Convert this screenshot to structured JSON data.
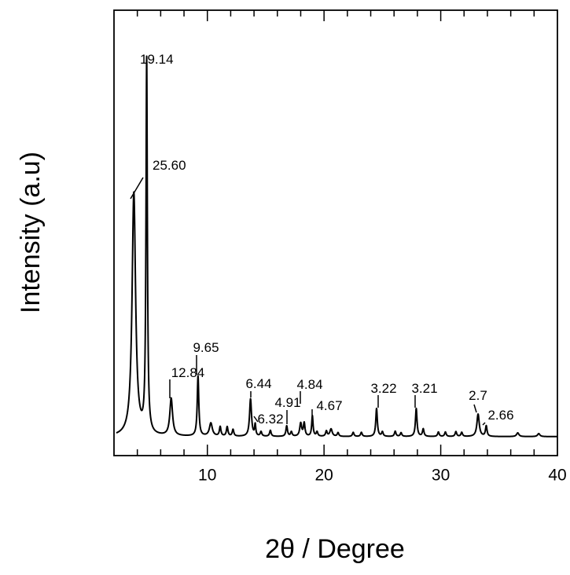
{
  "chart_data": {
    "type": "line",
    "title": "",
    "xlabel": "2θ / Degree",
    "ylabel": "Intensity (a.u)",
    "xlim": [
      2,
      40
    ],
    "ylim": [
      0,
      100
    ],
    "x_ticks": [
      10,
      20,
      30,
      40
    ],
    "x_tick_labels": [
      "10",
      "20",
      "30",
      "40"
    ],
    "y_tick_labels": [],
    "grid": false,
    "legend": "none",
    "line_color": "#000000",
    "series": [
      {
        "values": {
          "baseline": 1.5,
          "peaks": [
            {
              "x": 3.7,
              "height": 65,
              "width": 0.18
            },
            {
              "x": 4.8,
              "height": 100,
              "width": 0.07
            },
            {
              "x": 6.9,
              "height": 10,
              "width": 0.14
            },
            {
              "x": 9.2,
              "height": 16,
              "width": 0.08
            },
            {
              "x": 10.3,
              "height": 3.5,
              "width": 0.15
            },
            {
              "x": 11.1,
              "height": 2.5,
              "width": 0.08
            },
            {
              "x": 11.7,
              "height": 2.5,
              "width": 0.08
            },
            {
              "x": 12.2,
              "height": 1.8,
              "width": 0.08
            },
            {
              "x": 13.7,
              "height": 10,
              "width": 0.1
            },
            {
              "x": 14.1,
              "height": 3,
              "width": 0.06
            },
            {
              "x": 14.6,
              "height": 1.2,
              "width": 0.08
            },
            {
              "x": 15.4,
              "height": 1.6,
              "width": 0.08
            },
            {
              "x": 16.8,
              "height": 2.8,
              "width": 0.08
            },
            {
              "x": 17.2,
              "height": 1.2,
              "width": 0.08
            },
            {
              "x": 18.0,
              "height": 3.5,
              "width": 0.1
            },
            {
              "x": 18.3,
              "height": 3.5,
              "width": 0.08
            },
            {
              "x": 19.0,
              "height": 5.5,
              "width": 0.07
            },
            {
              "x": 19.4,
              "height": 1.2,
              "width": 0.08
            },
            {
              "x": 20.2,
              "height": 1.4,
              "width": 0.08
            },
            {
              "x": 20.6,
              "height": 2,
              "width": 0.12
            },
            {
              "x": 21.2,
              "height": 1,
              "width": 0.08
            },
            {
              "x": 22.5,
              "height": 1.1,
              "width": 0.08
            },
            {
              "x": 23.2,
              "height": 1.1,
              "width": 0.08
            },
            {
              "x": 24.5,
              "height": 7.5,
              "width": 0.08
            },
            {
              "x": 25.0,
              "height": 1.2,
              "width": 0.08
            },
            {
              "x": 26.1,
              "height": 1.4,
              "width": 0.08
            },
            {
              "x": 26.6,
              "height": 1,
              "width": 0.08
            },
            {
              "x": 27.9,
              "height": 7.5,
              "width": 0.08
            },
            {
              "x": 28.5,
              "height": 2,
              "width": 0.08
            },
            {
              "x": 29.8,
              "height": 1.2,
              "width": 0.08
            },
            {
              "x": 30.4,
              "height": 1.2,
              "width": 0.08
            },
            {
              "x": 31.3,
              "height": 1.3,
              "width": 0.08
            },
            {
              "x": 31.8,
              "height": 1.1,
              "width": 0.08
            },
            {
              "x": 33.2,
              "height": 6,
              "width": 0.12
            },
            {
              "x": 33.9,
              "height": 2.8,
              "width": 0.08
            },
            {
              "x": 36.6,
              "height": 1,
              "width": 0.12
            },
            {
              "x": 38.4,
              "height": 0.8,
              "width": 0.12
            }
          ]
        }
      }
    ],
    "annotations": [
      {
        "text": "19.14",
        "x": 4.8
      },
      {
        "text": "25.60",
        "x": 3.7
      },
      {
        "text": "12.84",
        "x": 6.9
      },
      {
        "text": "9.65",
        "x": 9.2
      },
      {
        "text": "6.44",
        "x": 13.7
      },
      {
        "text": "6.32",
        "x": 14.1
      },
      {
        "text": "4.91",
        "x": 16.8
      },
      {
        "text": "4.84",
        "x": 18.0
      },
      {
        "text": "4.67",
        "x": 19.0
      },
      {
        "text": "3.22",
        "x": 24.5
      },
      {
        "text": "3.21",
        "x": 27.9
      },
      {
        "text": "2.7",
        "x": 33.2
      },
      {
        "text": "2.66",
        "x": 33.9
      }
    ]
  }
}
